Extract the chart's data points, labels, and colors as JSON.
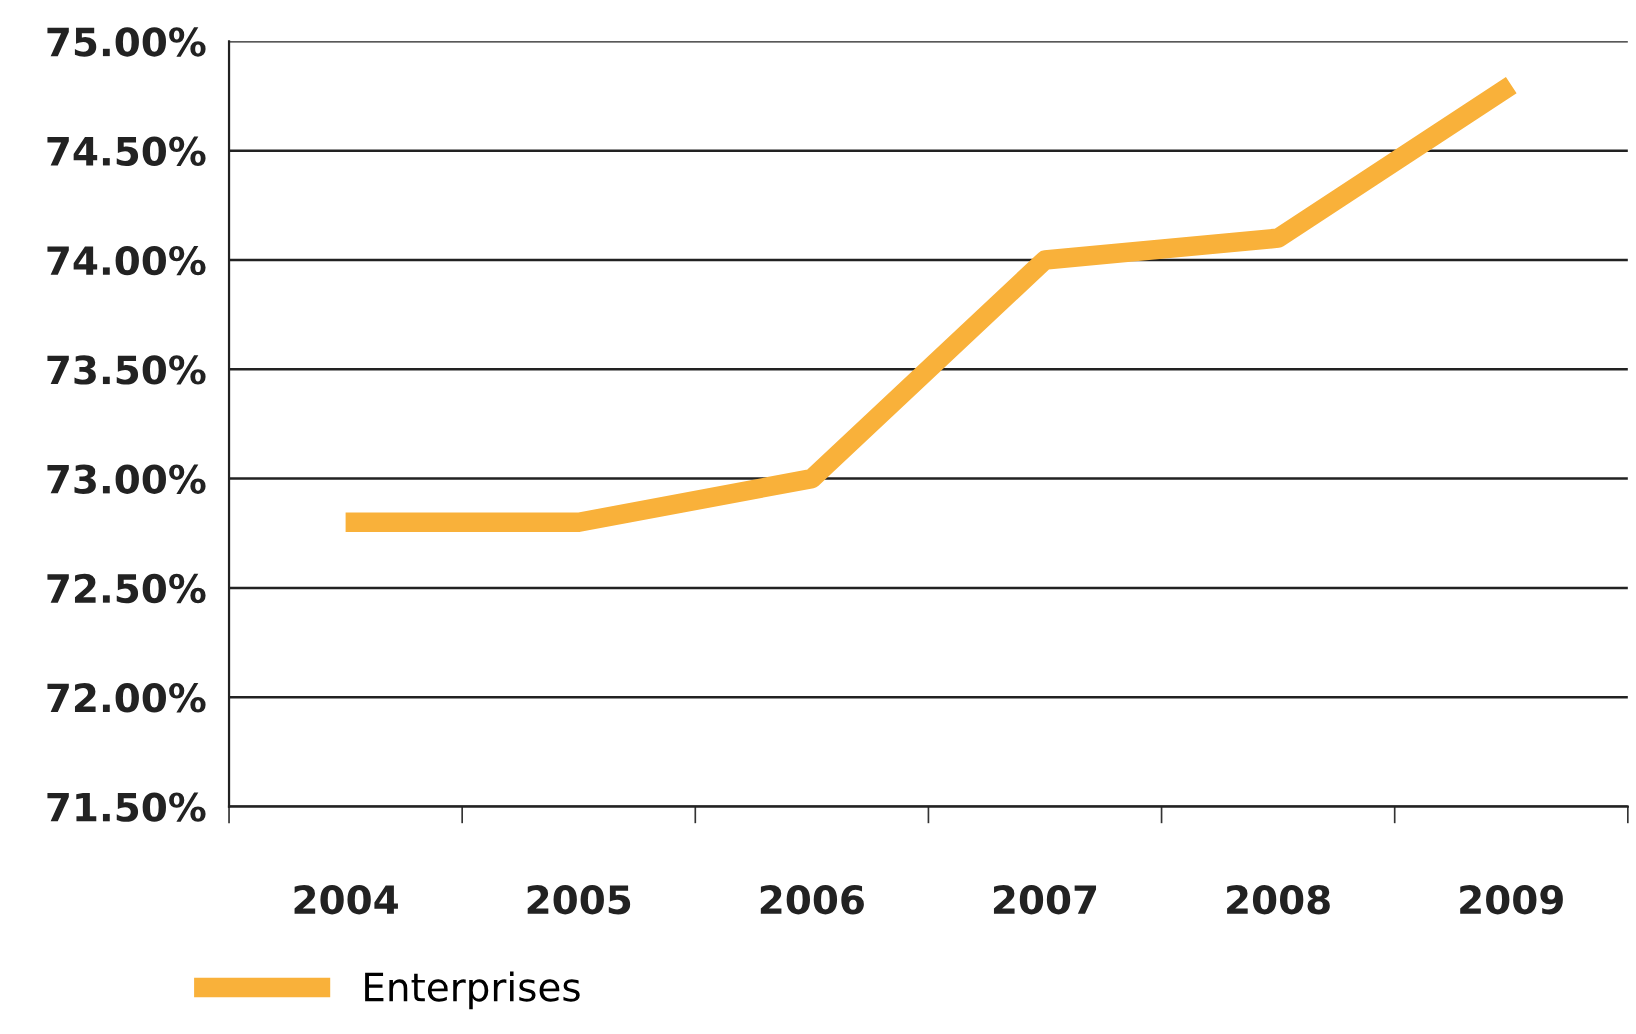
{
  "chart_data": {
    "type": "line",
    "categories": [
      "2004",
      "2005",
      "2006",
      "2007",
      "2008",
      "2009"
    ],
    "series": [
      {
        "name": "Enterprises",
        "color": "#f9b13a",
        "values": [
          72.8,
          72.8,
          73.0,
          74.0,
          74.1,
          74.8
        ]
      }
    ],
    "ylim": [
      71.5,
      75.0
    ],
    "yticks": [
      {
        "value": 71.5,
        "label": "71.50%"
      },
      {
        "value": 72.0,
        "label": "72.00%"
      },
      {
        "value": 72.5,
        "label": "72.50%"
      },
      {
        "value": 73.0,
        "label": "73.00%"
      },
      {
        "value": 73.5,
        "label": "73.50%"
      },
      {
        "value": 74.0,
        "label": "74.00%"
      },
      {
        "value": 74.5,
        "label": "74.50%"
      },
      {
        "value": 75.0,
        "label": "75.00%"
      }
    ],
    "grid": "y",
    "legend": "bottom left",
    "marker": "none",
    "line_style": "solid"
  }
}
